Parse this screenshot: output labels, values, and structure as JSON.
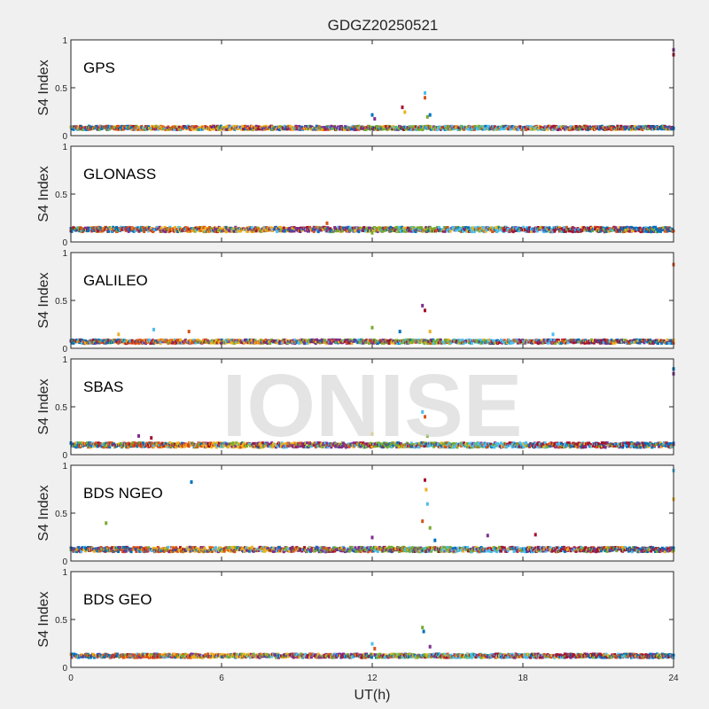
{
  "colors": {
    "background": "#f0f0f0",
    "panel": "#ffffff",
    "axis": "#262626",
    "palette": [
      "#0072BD",
      "#D95319",
      "#EDB120",
      "#7E2F8E",
      "#77AC30",
      "#4DBEEE",
      "#A2142F"
    ]
  },
  "watermark": "IONISE",
  "chart_data": {
    "type": "scatter",
    "title": "GDGZ20250521",
    "xlabel": "UT(h)",
    "ylabel": "S4 Index",
    "xlim": [
      0,
      24
    ],
    "xticks": [
      "0",
      "6",
      "12",
      "18",
      "24"
    ],
    "ylim": [
      0,
      1
    ],
    "yticks": [
      "0",
      "0.5",
      "1"
    ],
    "grid": false,
    "panels": [
      {
        "name": "GPS",
        "baseline": 0.08,
        "noise": 0.02,
        "spikes": [
          [
            12.0,
            0.22
          ],
          [
            12.1,
            0.18
          ],
          [
            13.2,
            0.3
          ],
          [
            13.3,
            0.25
          ],
          [
            14.1,
            0.45
          ],
          [
            14.1,
            0.4
          ],
          [
            14.2,
            0.2
          ],
          [
            14.3,
            0.22
          ],
          [
            24.0,
            0.9
          ],
          [
            24.0,
            0.85
          ]
        ]
      },
      {
        "name": "GLONASS",
        "baseline": 0.13,
        "noise": 0.025,
        "spikes": [
          [
            10.2,
            0.2
          ],
          [
            12.0,
            0.1
          ]
        ]
      },
      {
        "name": "GALILEO",
        "baseline": 0.07,
        "noise": 0.02,
        "spikes": [
          [
            1.9,
            0.15
          ],
          [
            3.3,
            0.2
          ],
          [
            4.7,
            0.18
          ],
          [
            12.0,
            0.22
          ],
          [
            13.1,
            0.18
          ],
          [
            14.0,
            0.45
          ],
          [
            14.1,
            0.4
          ],
          [
            14.3,
            0.18
          ],
          [
            19.2,
            0.15
          ],
          [
            24.0,
            0.88
          ]
        ]
      },
      {
        "name": "SBAS",
        "baseline": 0.1,
        "noise": 0.025,
        "spikes": [
          [
            2.7,
            0.2
          ],
          [
            3.2,
            0.18
          ],
          [
            12.0,
            0.22
          ],
          [
            14.0,
            0.45
          ],
          [
            14.1,
            0.4
          ],
          [
            14.2,
            0.2
          ],
          [
            24.0,
            0.9
          ],
          [
            24.0,
            0.85
          ]
        ]
      },
      {
        "name": "BDS NGEO",
        "baseline": 0.12,
        "noise": 0.025,
        "spikes": [
          [
            1.4,
            0.4
          ],
          [
            4.8,
            0.83
          ],
          [
            12.0,
            0.25
          ],
          [
            14.1,
            0.85
          ],
          [
            14.15,
            0.75
          ],
          [
            14.2,
            0.6
          ],
          [
            14.0,
            0.42
          ],
          [
            14.3,
            0.35
          ],
          [
            14.5,
            0.22
          ],
          [
            16.6,
            0.27
          ],
          [
            18.5,
            0.28
          ],
          [
            24.0,
            0.65
          ],
          [
            24.0,
            0.95
          ]
        ]
      },
      {
        "name": "BDS GEO",
        "baseline": 0.12,
        "noise": 0.02,
        "spikes": [
          [
            12.0,
            0.25
          ],
          [
            12.1,
            0.2
          ],
          [
            14.0,
            0.42
          ],
          [
            14.05,
            0.38
          ],
          [
            14.3,
            0.22
          ]
        ]
      }
    ]
  }
}
